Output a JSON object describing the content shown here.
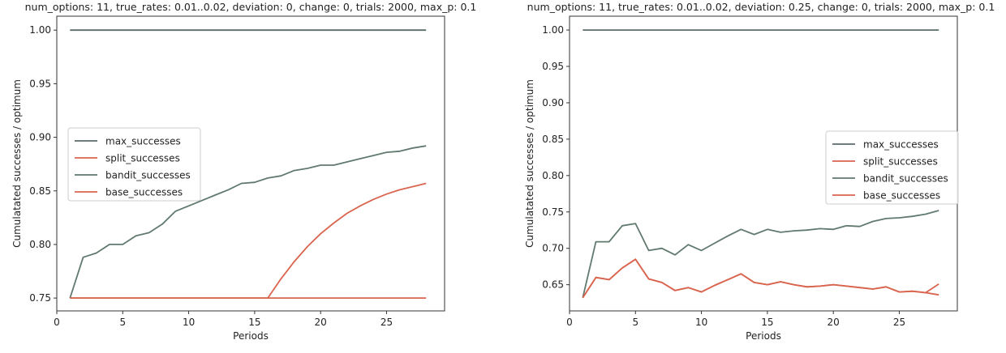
{
  "chart_data": [
    {
      "type": "line",
      "title": "num_options: 11, true_rates: 0.01..0.02, deviation: 0, change: 0, trials: 2000, max_p: 0.1",
      "xlabel": "Periods",
      "ylabel": "Cumulatated successes / optimum",
      "xlim": [
        0,
        29.4
      ],
      "ylim": [
        0.738,
        1.013
      ],
      "xticks": [
        0,
        5,
        10,
        15,
        20,
        25
      ],
      "yticks": [
        0.75,
        0.8,
        0.85,
        0.9,
        0.95,
        1.0
      ],
      "ytick_labels": [
        "0.75",
        "0.80",
        "0.85",
        "0.90",
        "0.95",
        "1.00"
      ],
      "grid": false,
      "legend_position": "center-left",
      "x": [
        1,
        2,
        3,
        4,
        5,
        6,
        7,
        8,
        9,
        10,
        11,
        12,
        13,
        14,
        15,
        16,
        17,
        18,
        19,
        20,
        21,
        22,
        23,
        24,
        25,
        26,
        27,
        28
      ],
      "series": [
        {
          "name": "max_successes",
          "color": "#5a6b6b",
          "values": [
            1,
            1,
            1,
            1,
            1,
            1,
            1,
            1,
            1,
            1,
            1,
            1,
            1,
            1,
            1,
            1,
            1,
            1,
            1,
            1,
            1,
            1,
            1,
            1,
            1,
            1,
            1,
            1
          ]
        },
        {
          "name": "split_successes",
          "color": "#d9654f",
          "values": [
            0.75,
            0.75,
            0.75,
            0.75,
            0.75,
            0.75,
            0.75,
            0.75,
            0.75,
            0.75,
            0.75,
            0.75,
            0.75,
            0.75,
            0.75,
            0.75,
            0.75,
            0.75,
            0.75,
            0.75,
            0.75,
            0.75,
            0.75,
            0.75,
            0.75,
            0.75,
            0.75,
            0.75
          ]
        },
        {
          "name": "bandit_successes",
          "color": "#607a6e",
          "values": [
            0.75,
            0.788,
            0.792,
            0.8,
            0.8,
            0.808,
            0.811,
            0.819,
            0.831,
            0.836,
            0.841,
            0.846,
            0.851,
            0.857,
            0.858,
            0.862,
            0.864,
            0.869,
            0.871,
            0.874,
            0.874,
            0.877,
            0.88,
            0.883,
            0.886,
            0.887,
            0.89,
            0.892
          ]
        },
        {
          "name": "base_successes",
          "color": "#d9654f",
          "values": [
            0.75,
            0.75,
            0.75,
            0.75,
            0.75,
            0.75,
            0.75,
            0.75,
            0.75,
            0.75,
            0.75,
            0.75,
            0.75,
            0.75,
            0.75,
            0.75,
            0.768,
            0.784,
            0.798,
            0.81,
            0.82,
            0.829,
            0.836,
            0.842,
            0.847,
            0.851,
            0.854,
            0.857
          ]
        }
      ]
    },
    {
      "type": "line",
      "title": "num_options: 11, true_rates: 0.01..0.02, deviation: 0.25, change: 0, trials: 2000, max_p: 0.1",
      "xlabel": "Periods",
      "ylabel": "Cumulatated successes / optimum",
      "xlim": [
        0,
        29.4
      ],
      "ylim": [
        0.614,
        1.019
      ],
      "xticks": [
        0,
        5,
        10,
        15,
        20,
        25
      ],
      "yticks": [
        0.65,
        0.7,
        0.75,
        0.8,
        0.85,
        0.9,
        0.95,
        1.0
      ],
      "ytick_labels": [
        "0.65",
        "0.70",
        "0.75",
        "0.80",
        "0.85",
        "0.90",
        "0.95",
        "1.00"
      ],
      "grid": false,
      "legend_position": "center-right",
      "x": [
        1,
        2,
        3,
        4,
        5,
        6,
        7,
        8,
        9,
        10,
        11,
        12,
        13,
        14,
        15,
        16,
        17,
        18,
        19,
        20,
        21,
        22,
        23,
        24,
        25,
        26,
        27,
        28
      ],
      "series": [
        {
          "name": "max_successes",
          "color": "#5a6b6b",
          "values": [
            1,
            1,
            1,
            1,
            1,
            1,
            1,
            1,
            1,
            1,
            1,
            1,
            1,
            1,
            1,
            1,
            1,
            1,
            1,
            1,
            1,
            1,
            1,
            1,
            1,
            1,
            1,
            1
          ]
        },
        {
          "name": "split_successes",
          "color": "#d9654f",
          "values": [
            0.632,
            0.66,
            0.657,
            0.673,
            0.685,
            0.658,
            0.653,
            0.642,
            0.646,
            0.64,
            0.649,
            0.657,
            0.665,
            0.653,
            0.65,
            0.654,
            0.65,
            0.647,
            0.648,
            0.65,
            0.648,
            0.646,
            0.644,
            0.647,
            0.64,
            0.641,
            0.639,
            0.651
          ]
        },
        {
          "name": "bandit_successes",
          "color": "#607a6e",
          "values": [
            0.632,
            0.709,
            0.709,
            0.731,
            0.734,
            0.697,
            0.7,
            0.691,
            0.705,
            0.697,
            0.707,
            0.717,
            0.726,
            0.719,
            0.726,
            0.722,
            0.724,
            0.725,
            0.727,
            0.726,
            0.731,
            0.73,
            0.737,
            0.741,
            0.742,
            0.744,
            0.747,
            0.752
          ]
        },
        {
          "name": "base_successes",
          "color": "#d9654f",
          "values": [
            0.632,
            0.66,
            0.657,
            0.673,
            0.685,
            0.658,
            0.653,
            0.642,
            0.646,
            0.64,
            0.649,
            0.657,
            0.665,
            0.653,
            0.65,
            0.654,
            0.65,
            0.647,
            0.648,
            0.65,
            0.648,
            0.646,
            0.644,
            0.647,
            0.64,
            0.641,
            0.639,
            0.636
          ]
        }
      ]
    }
  ]
}
